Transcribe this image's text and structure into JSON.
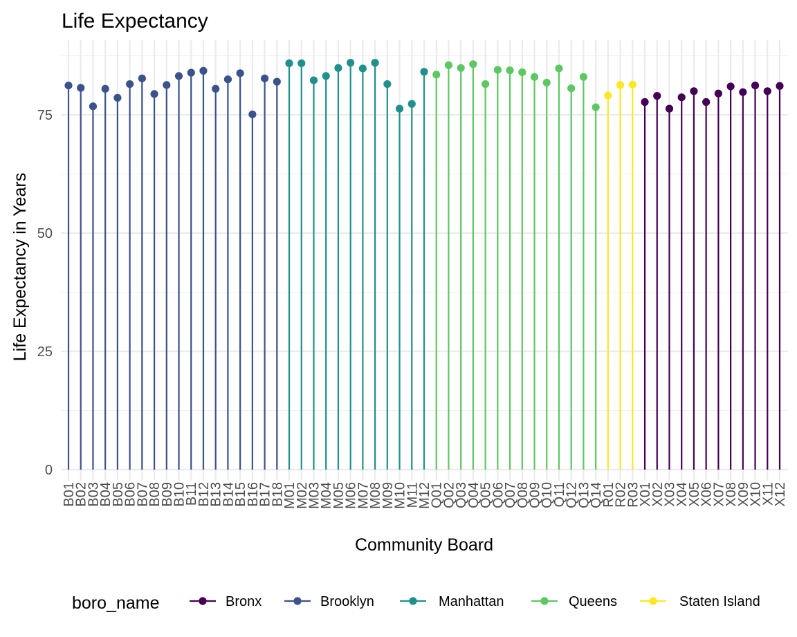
{
  "chart_data": {
    "type": "lollipop",
    "title": "Life Expectancy",
    "xlabel": "Community Board",
    "ylabel": "Life Expectancy in Years",
    "ylim": [
      0,
      90
    ],
    "yticks": [
      0,
      25,
      50,
      75
    ],
    "grid": true,
    "legend": {
      "title": "boro_name",
      "placement": "bottom",
      "entries": [
        {
          "name": "Bronx",
          "color": "#440154"
        },
        {
          "name": "Brooklyn",
          "color": "#3B528B"
        },
        {
          "name": "Manhattan",
          "color": "#21908C"
        },
        {
          "name": "Queens",
          "color": "#5DC863"
        },
        {
          "name": "Staten Island",
          "color": "#FDE725"
        }
      ]
    },
    "points": [
      {
        "x": "B01",
        "y": 81.2,
        "boro": "Brooklyn"
      },
      {
        "x": "B02",
        "y": 80.7,
        "boro": "Brooklyn"
      },
      {
        "x": "B03",
        "y": 76.8,
        "boro": "Brooklyn"
      },
      {
        "x": "B04",
        "y": 80.5,
        "boro": "Brooklyn"
      },
      {
        "x": "B05",
        "y": 78.6,
        "boro": "Brooklyn"
      },
      {
        "x": "B06",
        "y": 81.5,
        "boro": "Brooklyn"
      },
      {
        "x": "B07",
        "y": 82.7,
        "boro": "Brooklyn"
      },
      {
        "x": "B08",
        "y": 79.4,
        "boro": "Brooklyn"
      },
      {
        "x": "B09",
        "y": 81.3,
        "boro": "Brooklyn"
      },
      {
        "x": "B10",
        "y": 83.2,
        "boro": "Brooklyn"
      },
      {
        "x": "B11",
        "y": 83.9,
        "boro": "Brooklyn"
      },
      {
        "x": "B12",
        "y": 84.3,
        "boro": "Brooklyn"
      },
      {
        "x": "B13",
        "y": 80.5,
        "boro": "Brooklyn"
      },
      {
        "x": "B14",
        "y": 82.5,
        "boro": "Brooklyn"
      },
      {
        "x": "B15",
        "y": 83.8,
        "boro": "Brooklyn"
      },
      {
        "x": "B16",
        "y": 75.1,
        "boro": "Brooklyn"
      },
      {
        "x": "B17",
        "y": 82.7,
        "boro": "Brooklyn"
      },
      {
        "x": "B18",
        "y": 82.0,
        "boro": "Brooklyn"
      },
      {
        "x": "M01",
        "y": 85.9,
        "boro": "Manhattan"
      },
      {
        "x": "M02",
        "y": 85.9,
        "boro": "Manhattan"
      },
      {
        "x": "M03",
        "y": 82.3,
        "boro": "Manhattan"
      },
      {
        "x": "M04",
        "y": 83.2,
        "boro": "Manhattan"
      },
      {
        "x": "M05",
        "y": 84.9,
        "boro": "Manhattan"
      },
      {
        "x": "M06",
        "y": 86.0,
        "boro": "Manhattan"
      },
      {
        "x": "M07",
        "y": 84.8,
        "boro": "Manhattan"
      },
      {
        "x": "M08",
        "y": 86.0,
        "boro": "Manhattan"
      },
      {
        "x": "M09",
        "y": 81.5,
        "boro": "Manhattan"
      },
      {
        "x": "M10",
        "y": 76.3,
        "boro": "Manhattan"
      },
      {
        "x": "M11",
        "y": 77.3,
        "boro": "Manhattan"
      },
      {
        "x": "M12",
        "y": 84.1,
        "boro": "Manhattan"
      },
      {
        "x": "Q01",
        "y": 83.5,
        "boro": "Queens"
      },
      {
        "x": "Q02",
        "y": 85.5,
        "boro": "Queens"
      },
      {
        "x": "Q03",
        "y": 84.9,
        "boro": "Queens"
      },
      {
        "x": "Q04",
        "y": 85.7,
        "boro": "Queens"
      },
      {
        "x": "Q05",
        "y": 81.5,
        "boro": "Queens"
      },
      {
        "x": "Q06",
        "y": 84.5,
        "boro": "Queens"
      },
      {
        "x": "Q07",
        "y": 84.4,
        "boro": "Queens"
      },
      {
        "x": "Q08",
        "y": 84.0,
        "boro": "Queens"
      },
      {
        "x": "Q09",
        "y": 83.0,
        "boro": "Queens"
      },
      {
        "x": "Q10",
        "y": 81.8,
        "boro": "Queens"
      },
      {
        "x": "Q11",
        "y": 84.8,
        "boro": "Queens"
      },
      {
        "x": "Q12",
        "y": 80.6,
        "boro": "Queens"
      },
      {
        "x": "Q13",
        "y": 83.0,
        "boro": "Queens"
      },
      {
        "x": "Q14",
        "y": 76.6,
        "boro": "Queens"
      },
      {
        "x": "R01",
        "y": 79.1,
        "boro": "Staten Island"
      },
      {
        "x": "R02",
        "y": 81.3,
        "boro": "Staten Island"
      },
      {
        "x": "R03",
        "y": 81.4,
        "boro": "Staten Island"
      },
      {
        "x": "X01",
        "y": 77.7,
        "boro": "Bronx"
      },
      {
        "x": "X02",
        "y": 79.0,
        "boro": "Bronx"
      },
      {
        "x": "X03",
        "y": 76.3,
        "boro": "Bronx"
      },
      {
        "x": "X04",
        "y": 78.7,
        "boro": "Bronx"
      },
      {
        "x": "X05",
        "y": 80.0,
        "boro": "Bronx"
      },
      {
        "x": "X06",
        "y": 77.7,
        "boro": "Bronx"
      },
      {
        "x": "X07",
        "y": 79.5,
        "boro": "Bronx"
      },
      {
        "x": "X08",
        "y": 81.0,
        "boro": "Bronx"
      },
      {
        "x": "X09",
        "y": 79.8,
        "boro": "Bronx"
      },
      {
        "x": "X10",
        "y": 81.2,
        "boro": "Bronx"
      },
      {
        "x": "X11",
        "y": 80.0,
        "boro": "Bronx"
      },
      {
        "x": "X12",
        "y": 81.1,
        "boro": "Bronx"
      }
    ]
  }
}
